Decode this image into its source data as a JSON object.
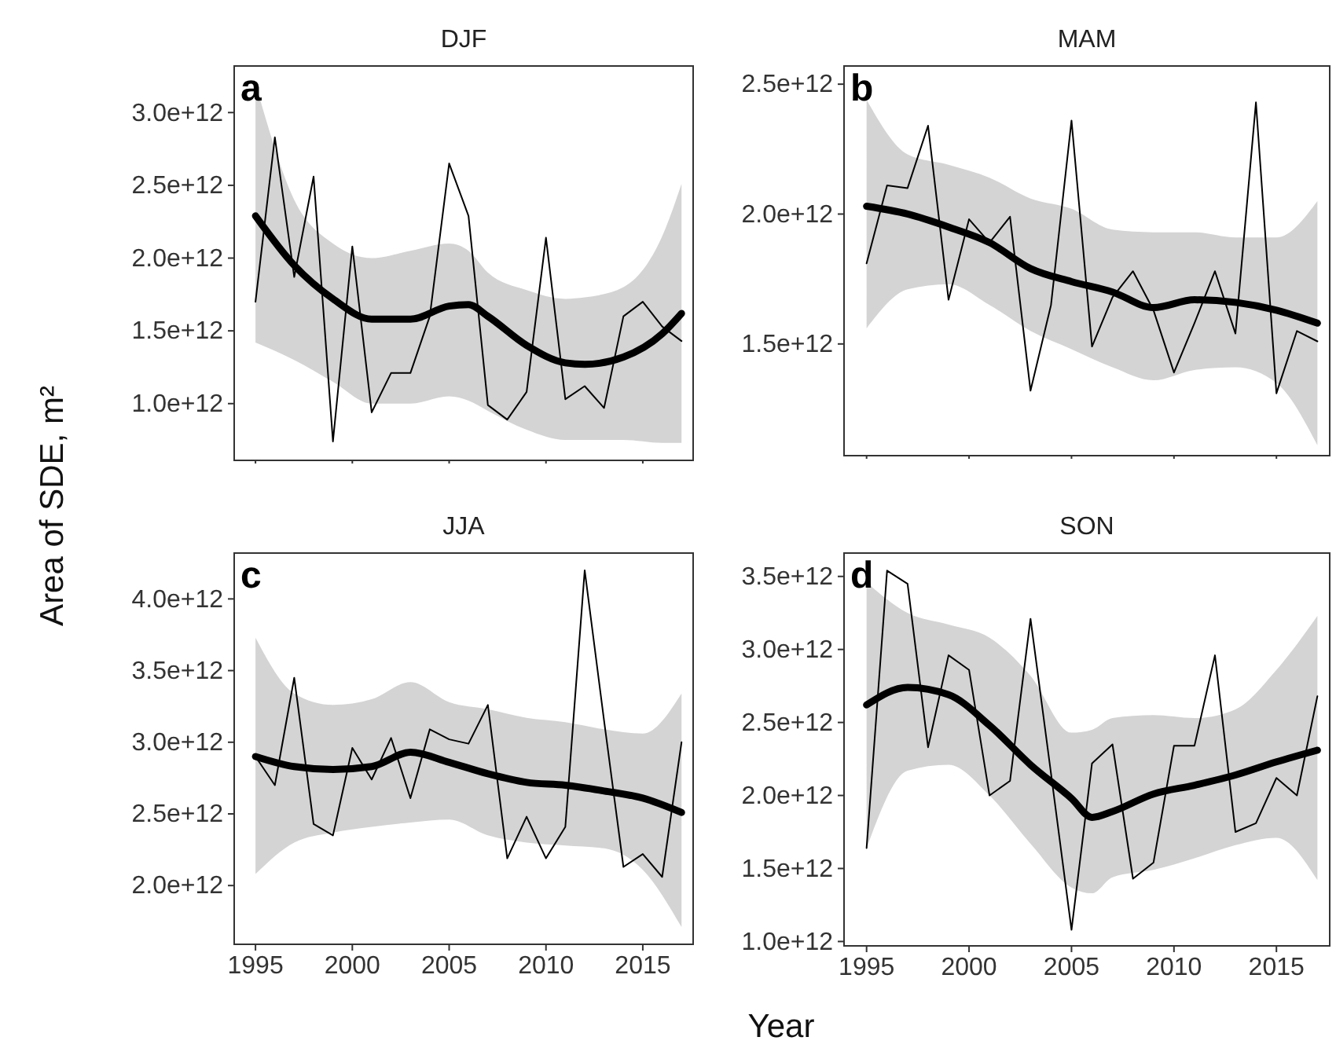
{
  "chart_data": [
    {
      "type": "line",
      "title": "DJF",
      "ylabel": "Area of SDE, m²",
      "annotations": [
        "a"
      ],
      "tick_labels": "y",
      "x": [
        1995,
        1996,
        1997,
        1998,
        1999,
        2000,
        2001,
        2002,
        2003,
        2004,
        2005,
        2006,
        2007,
        2008,
        2009,
        2010,
        2011,
        2012,
        2013,
        2014,
        2015,
        2016,
        2017
      ],
      "xlim": [
        1993.9,
        2017.6
      ],
      "xticks": [
        1995,
        2000,
        2005,
        2010,
        2015
      ],
      "ylim": [
        610000000000.0,
        3320000000000.0
      ],
      "yticks": [
        {
          "value": 1000000000000.0,
          "label": "1.0e+12"
        },
        {
          "value": 1500000000000.0,
          "label": "1.5e+12"
        },
        {
          "value": 2000000000000.0,
          "label": "2.0e+12"
        },
        {
          "value": 2500000000000.0,
          "label": "2.5e+12"
        },
        {
          "value": 3000000000000.0,
          "label": "3.0e+12"
        }
      ],
      "series": [
        {
          "color": "#000000",
          "values": [
            1700000000000.0,
            2830000000000.0,
            1870000000000.0,
            2560000000000.0,
            740000000000.0,
            2080000000000.0,
            940000000000.0,
            1210000000000.0,
            1210000000000.0,
            1600000000000.0,
            2650000000000.0,
            2290000000000.0,
            990000000000.0,
            890000000000.0,
            1080000000000.0,
            2140000000000.0,
            1030000000000.0,
            1120000000000.0,
            970000000000.0,
            1600000000000.0,
            1700000000000.0,
            1530000000000.0,
            1430000000000.0
          ]
        },
        {
          "color": "#000000",
          "x": [
            1995,
            1997,
            1999,
            2001,
            2003,
            2005,
            2006,
            2007,
            2009,
            2011,
            2012,
            2014,
            2016,
            2017
          ],
          "values": [
            2290000000000.0,
            1950000000000.0,
            1720000000000.0,
            1580000000000.0,
            1580000000000.0,
            1670000000000.0,
            1680000000000.0,
            1600000000000.0,
            1400000000000.0,
            1280000000000.0,
            1270000000000.0,
            1320000000000.0,
            1480000000000.0,
            1620000000000.0
          ],
          "lower": [
            1420000000000.0,
            1300000000000.0,
            1150000000000.0,
            1000000000000.0,
            1000000000000.0,
            1050000000000.0,
            1020000000000.0,
            950000000000.0,
            820000000000.0,
            750000000000.0,
            750000000000.0,
            750000000000.0,
            730000000000.0,
            730000000000.0
          ],
          "upper": [
            3200000000000.0,
            2400000000000.0,
            2100000000000.0,
            2000000000000.0,
            2050000000000.0,
            2100000000000.0,
            2050000000000.0,
            1900000000000.0,
            1780000000000.0,
            1720000000000.0,
            1730000000000.0,
            1800000000000.0,
            2150000000000.0,
            2510000000000.0
          ]
        }
      ]
    },
    {
      "type": "line",
      "title": "MAM",
      "annotations": [
        "b"
      ],
      "tick_labels": "y",
      "x": [
        1995,
        1996,
        1997,
        1998,
        1999,
        2000,
        2001,
        2002,
        2003,
        2004,
        2005,
        2006,
        2007,
        2008,
        2009,
        2010,
        2011,
        2012,
        2013,
        2014,
        2015,
        2016,
        2017
      ],
      "xlim": [
        1993.9,
        2017.6
      ],
      "xticks": [
        1995,
        2000,
        2005,
        2010,
        2015
      ],
      "ylim": [
        1070000000000.0,
        2570000000000.0
      ],
      "yticks": [
        {
          "value": 1500000000000.0,
          "label": "1.5e+12"
        },
        {
          "value": 2000000000000.0,
          "label": "2.0e+12"
        },
        {
          "value": 2500000000000.0,
          "label": "2.5e+12"
        }
      ],
      "series": [
        {
          "color": "#000000",
          "values": [
            1810000000000.0,
            2110000000000.0,
            2100000000000.0,
            2340000000000.0,
            1670000000000.0,
            1980000000000.0,
            1890000000000.0,
            1990000000000.0,
            1320000000000.0,
            1650000000000.0,
            2360000000000.0,
            1490000000000.0,
            1680000000000.0,
            1780000000000.0,
            1630000000000.0,
            1390000000000.0,
            1580000000000.0,
            1780000000000.0,
            1540000000000.0,
            2430000000000.0,
            1310000000000.0,
            1550000000000.0,
            1510000000000.0
          ]
        },
        {
          "color": "#000000",
          "x": [
            1995,
            1997,
            1999,
            2001,
            2003,
            2005,
            2007,
            2009,
            2011,
            2013,
            2015,
            2017
          ],
          "values": [
            2030000000000.0,
            2000000000000.0,
            1950000000000.0,
            1890000000000.0,
            1790000000000.0,
            1740000000000.0,
            1700000000000.0,
            1640000000000.0,
            1670000000000.0,
            1660000000000.0,
            1630000000000.0,
            1580000000000.0
          ],
          "lower": [
            1560000000000.0,
            1710000000000.0,
            1730000000000.0,
            1650000000000.0,
            1550000000000.0,
            1480000000000.0,
            1410000000000.0,
            1360000000000.0,
            1400000000000.0,
            1410000000000.0,
            1350000000000.0,
            1110000000000.0
          ],
          "upper": [
            2440000000000.0,
            2230000000000.0,
            2190000000000.0,
            2140000000000.0,
            2060000000000.0,
            2020000000000.0,
            1940000000000.0,
            1930000000000.0,
            1930000000000.0,
            1910000000000.0,
            1910000000000.0,
            2050000000000.0
          ]
        }
      ]
    },
    {
      "type": "line",
      "title": "JJA",
      "xlabel": "Year",
      "annotations": [
        "c"
      ],
      "x": [
        1995,
        1996,
        1997,
        1998,
        1999,
        2000,
        2001,
        2002,
        2003,
        2004,
        2005,
        2006,
        2007,
        2008,
        2009,
        2010,
        2011,
        2012,
        2013,
        2014,
        2015,
        2016,
        2017
      ],
      "xlim": [
        1993.9,
        2017.6
      ],
      "xticks": [
        1995,
        2000,
        2005,
        2010,
        2015
      ],
      "ylim": [
        1590000000000.0,
        4320000000000.0
      ],
      "yticks": [
        {
          "value": 2000000000000.0,
          "label": "2.0e+12"
        },
        {
          "value": 2500000000000.0,
          "label": "2.5e+12"
        },
        {
          "value": 3000000000000.0,
          "label": "3.0e+12"
        },
        {
          "value": 3500000000000.0,
          "label": "3.5e+12"
        },
        {
          "value": 4000000000000.0,
          "label": "4.0e+12"
        }
      ],
      "series": [
        {
          "color": "#000000",
          "values": [
            2900000000000.0,
            2700000000000.0,
            3450000000000.0,
            2430000000000.0,
            2350000000000.0,
            2960000000000.0,
            2740000000000.0,
            3030000000000.0,
            2610000000000.0,
            3090000000000.0,
            3020000000000.0,
            2990000000000.0,
            3260000000000.0,
            2190000000000.0,
            2480000000000.0,
            2190000000000.0,
            2410000000000.0,
            4200000000000.0,
            3150000000000.0,
            2130000000000.0,
            2220000000000.0,
            2060000000000.0,
            3000000000000.0
          ]
        },
        {
          "color": "#000000",
          "x": [
            1995,
            1997,
            1999,
            2001,
            2003,
            2005,
            2007,
            2009,
            2011,
            2013,
            2015,
            2017
          ],
          "values": [
            2900000000000.0,
            2830000000000.0,
            2810000000000.0,
            2830000000000.0,
            2930000000000.0,
            2860000000000.0,
            2780000000000.0,
            2720000000000.0,
            2700000000000.0,
            2660000000000.0,
            2610000000000.0,
            2510000000000.0
          ],
          "lower": [
            2080000000000.0,
            2300000000000.0,
            2370000000000.0,
            2410000000000.0,
            2440000000000.0,
            2460000000000.0,
            2350000000000.0,
            2300000000000.0,
            2280000000000.0,
            2260000000000.0,
            2110000000000.0,
            1710000000000.0
          ],
          "upper": [
            3730000000000.0,
            3340000000000.0,
            3260000000000.0,
            3300000000000.0,
            3420000000000.0,
            3280000000000.0,
            3230000000000.0,
            3170000000000.0,
            3140000000000.0,
            3090000000000.0,
            3060000000000.0,
            3340000000000.0
          ]
        }
      ]
    },
    {
      "type": "line",
      "title": "SON",
      "annotations": [
        "d"
      ],
      "x": [
        1995,
        1996,
        1997,
        1998,
        1999,
        2000,
        2001,
        2002,
        2003,
        2004,
        2005,
        2006,
        2007,
        2008,
        2009,
        2010,
        2011,
        2012,
        2013,
        2014,
        2015,
        2016,
        2017
      ],
      "xlim": [
        1993.9,
        2017.6
      ],
      "xticks": [
        1995,
        2000,
        2005,
        2010,
        2015
      ],
      "ylim": [
        970000000000.0,
        3660000000000.0
      ],
      "yticks": [
        {
          "value": 1000000000000.0,
          "label": "1.0e+12"
        },
        {
          "value": 1500000000000.0,
          "label": "1.5e+12"
        },
        {
          "value": 2000000000000.0,
          "label": "2.0e+12"
        },
        {
          "value": 2500000000000.0,
          "label": "2.5e+12"
        },
        {
          "value": 3000000000000.0,
          "label": "3.0e+12"
        },
        {
          "value": 3500000000000.0,
          "label": "3.5e+12"
        }
      ],
      "series": [
        {
          "color": "#000000",
          "values": [
            1640000000000.0,
            3540000000000.0,
            3450000000000.0,
            2330000000000.0,
            2960000000000.0,
            2860000000000.0,
            2000000000000.0,
            2100000000000.0,
            3210000000000.0,
            2150000000000.0,
            1080000000000.0,
            2220000000000.0,
            2350000000000.0,
            1430000000000.0,
            1540000000000.0,
            2340000000000.0,
            2340000000000.0,
            2960000000000.0,
            1750000000000.0,
            1810000000000.0,
            2120000000000.0,
            2000000000000.0,
            2680000000000.0
          ]
        },
        {
          "color": "#000000",
          "x": [
            1995,
            1997,
            1999,
            2001,
            2003,
            2005,
            2006,
            2007,
            2009,
            2011,
            2013,
            2015,
            2017
          ],
          "values": [
            2620000000000.0,
            2740000000000.0,
            2690000000000.0,
            2480000000000.0,
            2210000000000.0,
            1980000000000.0,
            1850000000000.0,
            1890000000000.0,
            2010000000000.0,
            2070000000000.0,
            2140000000000.0,
            2230000000000.0,
            2310000000000.0
          ],
          "lower": [
            1640000000000.0,
            2170000000000.0,
            2210000000000.0,
            2000000000000.0,
            1670000000000.0,
            1370000000000.0,
            1330000000000.0,
            1440000000000.0,
            1490000000000.0,
            1570000000000.0,
            1660000000000.0,
            1710000000000.0,
            1420000000000.0
          ],
          "upper": [
            3460000000000.0,
            3250000000000.0,
            3170000000000.0,
            3080000000000.0,
            2820000000000.0,
            2430000000000.0,
            2450000000000.0,
            2530000000000.0,
            2550000000000.0,
            2530000000000.0,
            2590000000000.0,
            2860000000000.0,
            3230000000000.0
          ]
        }
      ]
    }
  ]
}
